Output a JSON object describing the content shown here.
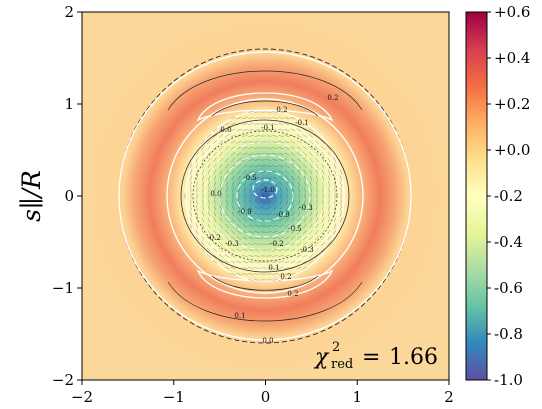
{
  "chart_data": {
    "type": "heatmap",
    "xlabel": "",
    "ylabel": "s∥/R",
    "xlim": [
      -2,
      2
    ],
    "ylim": [
      -2,
      2
    ],
    "x_ticks": [
      "−2",
      "−1",
      "0",
      "1",
      "2"
    ],
    "y_ticks": [
      "−2",
      "−1",
      "0",
      "1",
      "2"
    ],
    "x_tick_values": [
      -2,
      -1,
      0,
      1,
      2
    ],
    "y_tick_values": [
      -2,
      -1,
      0,
      1,
      2
    ],
    "colorbar": {
      "vmin": -1.0,
      "vmax": 0.6,
      "ticks": [
        {
          "value": 0.6,
          "label": "+0.6"
        },
        {
          "value": 0.4,
          "label": "+0.4"
        },
        {
          "value": 0.2,
          "label": "+0.2"
        },
        {
          "value": 0.0,
          "label": "+0.0"
        },
        {
          "value": -0.2,
          "label": "-0.2"
        },
        {
          "value": -0.4,
          "label": "-0.4"
        },
        {
          "value": -0.6,
          "label": "-0.6"
        },
        {
          "value": -0.8,
          "label": "-0.8"
        },
        {
          "value": -1.0,
          "label": "-1.0"
        }
      ],
      "colors": [
        "#5e4fa2",
        "#3288bd",
        "#66c2a5",
        "#abdda4",
        "#e6f598",
        "#ffffbf",
        "#fee08b",
        "#fdae61",
        "#f46d43",
        "#d53e4f",
        "#9e0142"
      ]
    },
    "annotation": {
      "prefix": "χ",
      "exponent": "2",
      "subscript": "red",
      "equals": "=",
      "value": "1.66"
    },
    "contour_labels": [
      "0.2",
      "0.0",
      "-0.1",
      "-0.1",
      "-0.2",
      "-0.3",
      "-0.5",
      "-0.9",
      "-1.0",
      "-0.9",
      "-0.5",
      "-0.3",
      "-0.2",
      "-0.3",
      "0.1",
      "0.2",
      "0.2",
      "0.1",
      "0.0",
      "0.0",
      "0.2"
    ]
  }
}
